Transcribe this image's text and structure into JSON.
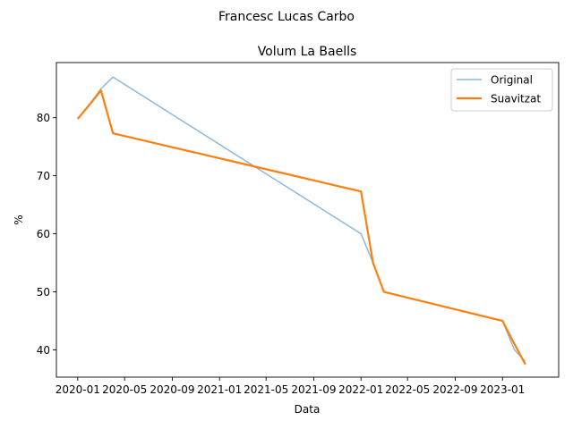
{
  "chart_data": {
    "type": "line",
    "suptitle": "Francesc Lucas Carbo",
    "title": "Volum La Baells",
    "xlabel": "Data",
    "ylabel": "%",
    "xlim": [
      "2019-11-07",
      "2023-05-26"
    ],
    "ylim": [
      35.3,
      89.5
    ],
    "x_ticks": [
      "2020-01",
      "2020-05",
      "2020-09",
      "2021-01",
      "2021-05",
      "2021-09",
      "2022-01",
      "2022-05",
      "2022-09",
      "2023-01"
    ],
    "y_ticks": [
      40,
      50,
      60,
      70,
      80
    ],
    "grid": false,
    "legend_position": "top-right",
    "series": [
      {
        "name": "Original",
        "color": "#8ab9dc",
        "points": [
          {
            "x": "2020-01-01",
            "y": 79.8
          },
          {
            "x": "2020-02-01",
            "y": 82.3
          },
          {
            "x": "2020-03-01",
            "y": 85.0
          },
          {
            "x": "2020-04-01",
            "y": 87.0
          },
          {
            "x": "2022-01-01",
            "y": 60.0
          },
          {
            "x": "2022-02-01",
            "y": 55.0
          },
          {
            "x": "2022-03-01",
            "y": 50.0
          },
          {
            "x": "2023-01-01",
            "y": 45.0
          },
          {
            "x": "2023-02-01",
            "y": 40.0
          },
          {
            "x": "2023-03-01",
            "y": 38.0
          }
        ]
      },
      {
        "name": "Suavitzat",
        "color": "#ff7f0e",
        "points": [
          {
            "x": "2020-01-01",
            "y": 79.8
          },
          {
            "x": "2020-02-01",
            "y": 82.3
          },
          {
            "x": "2020-03-01",
            "y": 84.7
          },
          {
            "x": "2020-04-01",
            "y": 77.3
          },
          {
            "x": "2022-01-01",
            "y": 67.3
          },
          {
            "x": "2022-02-01",
            "y": 55.0
          },
          {
            "x": "2022-03-01",
            "y": 50.0
          },
          {
            "x": "2023-01-01",
            "y": 45.0
          },
          {
            "x": "2023-02-01",
            "y": 41.0
          },
          {
            "x": "2023-03-01",
            "y": 37.5
          }
        ]
      }
    ]
  }
}
